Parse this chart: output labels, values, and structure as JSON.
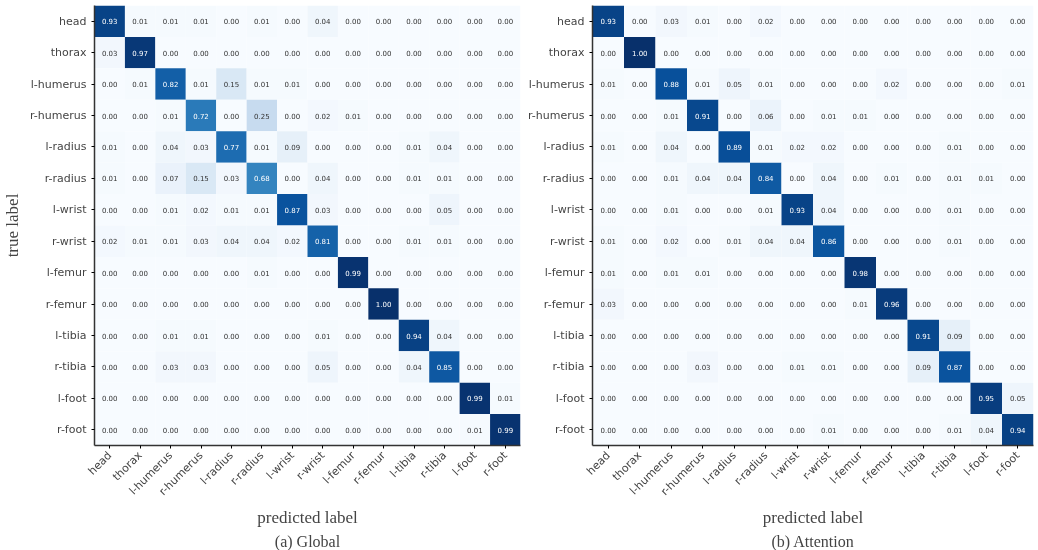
{
  "chart_data": [
    {
      "type": "heatmap",
      "xlabel": "predicted label",
      "ylabel": "true label",
      "annotations": [
        "(a) Global"
      ],
      "grid": false,
      "categories": [
        "head",
        "thorax",
        "l-humerus",
        "r-humerus",
        "l-radius",
        "r-radius",
        "l-wrist",
        "r-wrist",
        "l-femur",
        "r-femur",
        "l-tibia",
        "r-tibia",
        "l-foot",
        "r-foot"
      ],
      "y_categories": [
        "head",
        "thorax",
        "l-humerus",
        "r-humerus",
        "l-radius",
        "r-radius",
        "l-wrist",
        "r-wrist",
        "l-femur",
        "r-femur",
        "l-tibia",
        "r-tibia",
        "l-foot",
        "r-foot"
      ],
      "cells": [
        [
          0.93,
          0.01,
          0.01,
          0.01,
          0.0,
          0.01,
          0.0,
          0.04,
          0.0,
          0.0,
          0.0,
          0.0,
          0.0,
          0.0
        ],
        [
          0.03,
          0.97,
          0.0,
          0.0,
          0.0,
          0.0,
          0.0,
          0.0,
          0.0,
          0.0,
          0.0,
          0.0,
          0.0,
          0.0
        ],
        [
          0.0,
          0.01,
          0.82,
          0.01,
          0.15,
          0.01,
          0.01,
          0.0,
          0.0,
          0.0,
          0.0,
          0.0,
          0.0,
          0.0
        ],
        [
          0.0,
          0.0,
          0.01,
          0.72,
          0.0,
          0.25,
          0.0,
          0.02,
          0.01,
          0.0,
          0.0,
          0.0,
          0.0,
          0.0
        ],
        [
          0.01,
          0.0,
          0.04,
          0.03,
          0.77,
          0.01,
          0.09,
          0.0,
          0.0,
          0.0,
          0.01,
          0.04,
          0.0,
          0.0
        ],
        [
          0.01,
          0.0,
          0.07,
          0.15,
          0.03,
          0.68,
          0.0,
          0.04,
          0.0,
          0.0,
          0.01,
          0.01,
          0.0,
          0.0
        ],
        [
          0.0,
          0.0,
          0.01,
          0.02,
          0.01,
          0.01,
          0.87,
          0.03,
          0.0,
          0.0,
          0.0,
          0.05,
          0.0,
          0.0
        ],
        [
          0.02,
          0.01,
          0.01,
          0.03,
          0.04,
          0.04,
          0.02,
          0.81,
          0.0,
          0.0,
          0.01,
          0.01,
          0.0,
          0.0
        ],
        [
          0.0,
          0.0,
          0.0,
          0.0,
          0.0,
          0.01,
          0.0,
          0.0,
          0.99,
          0.0,
          0.0,
          0.0,
          0.0,
          0.0
        ],
        [
          0.0,
          0.0,
          0.0,
          0.0,
          0.0,
          0.0,
          0.0,
          0.0,
          0.0,
          1.0,
          0.0,
          0.0,
          0.0,
          0.0
        ],
        [
          0.0,
          0.0,
          0.01,
          0.01,
          0.0,
          0.0,
          0.0,
          0.01,
          0.0,
          0.0,
          0.94,
          0.04,
          0.0,
          0.0
        ],
        [
          0.0,
          0.0,
          0.03,
          0.03,
          0.0,
          0.0,
          0.0,
          0.05,
          0.0,
          0.0,
          0.04,
          0.85,
          0.0,
          0.0
        ],
        [
          0.0,
          0.0,
          0.0,
          0.0,
          0.0,
          0.0,
          0.0,
          0.0,
          0.0,
          0.0,
          0.0,
          0.0,
          0.99,
          0.01
        ],
        [
          0.0,
          0.0,
          0.0,
          0.0,
          0.0,
          0.0,
          0.0,
          0.0,
          0.0,
          0.0,
          0.0,
          0.0,
          0.01,
          0.99
        ]
      ],
      "cell_labels": [
        [
          "0.93",
          "0.01",
          "0.01",
          "0.01",
          "0.00",
          "0.01",
          "0.00",
          "0.04",
          "0.00",
          "0.00",
          "0.00",
          "0.00",
          "0.00",
          "0.00"
        ],
        [
          "0.03",
          "0.97",
          "0.00",
          "0.00",
          "0.00",
          "0.00",
          "0.00",
          "0.00",
          "0.00",
          "0.00",
          "0.00",
          "0.00",
          "0.00",
          "0.00"
        ],
        [
          "0.00",
          "0.01",
          "0.82",
          "0.01",
          "0.15",
          "0.01",
          "0.01",
          "0.00",
          "0.00",
          "0.00",
          "0.00",
          "0.00",
          "0.00",
          "0.00"
        ],
        [
          "0.00",
          "0.00",
          "0.01",
          "0.72",
          "0.00",
          "0.25",
          "0.00",
          "0.02",
          "0.01",
          "0.00",
          "0.00",
          "0.00",
          "0.00",
          "0.00"
        ],
        [
          "0.01",
          "0.00",
          "0.04",
          "0.03",
          "0.77",
          "0.01",
          "0.09",
          "0.00",
          "0.00",
          "0.00",
          "0.01",
          "0.04",
          "0.00",
          "0.00"
        ],
        [
          "0.01",
          "0.00",
          "0.07",
          "0.15",
          "0.03",
          "0.68",
          "0.00",
          "0.04",
          "0.00",
          "0.00",
          "0.01",
          "0.01",
          "0.00",
          "0.00"
        ],
        [
          "0.00",
          "0.00",
          "0.01",
          "0.02",
          "0.01",
          "0.01",
          "0.87",
          "0.03",
          "0.00",
          "0.00",
          "0.00",
          "0.05",
          "0.00",
          "0.00"
        ],
        [
          "0.02",
          "0.01",
          "0.01",
          "0.03",
          "0.04",
          "0.04",
          "0.02",
          "0.81",
          "0.00",
          "0.00",
          "0.01",
          "0.01",
          "0.00",
          "0.00"
        ],
        [
          "0.00",
          "0.00",
          "0.00",
          "0.00",
          "0.00",
          "0.01",
          "0.00",
          "0.00",
          "0.99",
          "0.00",
          "0.00",
          "0.00",
          "0.00",
          "0.00"
        ],
        [
          "0.00",
          "0.00",
          "0.00",
          "0.00",
          "0.00",
          "0.00",
          "0.00",
          "0.00",
          "0.00",
          "1.00",
          "0.00",
          "0.00",
          "0.00",
          "0.00"
        ],
        [
          "0.00",
          "0.00",
          "0.01",
          "0.01",
          "0.00",
          "0.00",
          "0.00",
          "0.01",
          "0.00",
          "0.00",
          "0.94",
          "0.04",
          "0.00",
          "0.00"
        ],
        [
          "0.00",
          "0.00",
          "0.03",
          "0.03",
          "0.00",
          "0.00",
          "0.00",
          "0.05",
          "0.00",
          "0.00",
          "0.04",
          "0.85",
          "0.00",
          "0.00"
        ],
        [
          "0.00",
          "0.00",
          "0.00",
          "0.00",
          "0.00",
          "0.00",
          "0.00",
          "0.00",
          "0.00",
          "0.00",
          "0.00",
          "0.00",
          "0.99",
          "0.01"
        ],
        [
          "0.00",
          "0.00",
          "0.00",
          "0.00",
          "0.00",
          "0.00",
          "0.00",
          "0.00",
          "0.00",
          "0.00",
          "0.00",
          "0.00",
          "0.01",
          "0.99"
        ]
      ]
    },
    {
      "type": "heatmap",
      "xlabel": "predicted label",
      "annotations": [
        "(b) Attention"
      ],
      "grid": false,
      "categories": [
        "head",
        "thorax",
        "l-humerus",
        "r-humerus",
        "l-radius",
        "r-radius",
        "l-wrist",
        "r-wrist",
        "l-femur",
        "r-femur",
        "l-tibia",
        "r-tibia",
        "l-foot",
        "r-foot"
      ],
      "y_categories": [
        "head",
        "thorax",
        "l-humerus",
        "r-humerus",
        "l-radius",
        "r-radius",
        "l-wrist",
        "r-wrist",
        "l-femur",
        "r-femur",
        "l-tibia",
        "r-tibia",
        "l-foot",
        "r-foot"
      ],
      "cells": [
        [
          0.93,
          0.0,
          0.03,
          0.01,
          0.0,
          0.02,
          0.0,
          0.0,
          0.0,
          0.0,
          0.0,
          0.0,
          0.0,
          0.0
        ],
        [
          0.0,
          1.0,
          0.0,
          0.0,
          0.0,
          0.0,
          0.0,
          0.0,
          0.0,
          0.0,
          0.0,
          0.0,
          0.0,
          0.0
        ],
        [
          0.01,
          0.0,
          0.88,
          0.01,
          0.05,
          0.01,
          0.0,
          0.0,
          0.0,
          0.02,
          0.0,
          0.0,
          0.0,
          0.01
        ],
        [
          0.0,
          0.0,
          0.01,
          0.91,
          0.0,
          0.06,
          0.0,
          0.01,
          0.01,
          0.0,
          0.0,
          0.0,
          0.0,
          0.0
        ],
        [
          0.01,
          0.0,
          0.04,
          0.0,
          0.89,
          0.01,
          0.02,
          0.02,
          0.0,
          0.0,
          0.0,
          0.01,
          0.0,
          0.0
        ],
        [
          0.0,
          0.0,
          0.01,
          0.04,
          0.04,
          0.84,
          0.0,
          0.04,
          0.0,
          0.01,
          0.0,
          0.01,
          0.01,
          0.0
        ],
        [
          0.0,
          0.0,
          0.01,
          0.0,
          0.0,
          0.01,
          0.93,
          0.04,
          0.0,
          0.0,
          0.0,
          0.01,
          0.0,
          0.0
        ],
        [
          0.01,
          0.0,
          0.02,
          0.0,
          0.01,
          0.04,
          0.04,
          0.86,
          0.0,
          0.0,
          0.0,
          0.01,
          0.0,
          0.0
        ],
        [
          0.01,
          0.0,
          0.01,
          0.01,
          0.0,
          0.0,
          0.0,
          0.0,
          0.98,
          0.0,
          0.0,
          0.0,
          0.0,
          0.0
        ],
        [
          0.03,
          0.0,
          0.0,
          0.0,
          0.0,
          0.0,
          0.0,
          0.0,
          0.01,
          0.96,
          0.0,
          0.0,
          0.0,
          0.0
        ],
        [
          0.0,
          0.0,
          0.0,
          0.0,
          0.0,
          0.0,
          0.0,
          0.0,
          0.0,
          0.0,
          0.91,
          0.09,
          0.0,
          0.0
        ],
        [
          0.0,
          0.0,
          0.0,
          0.03,
          0.0,
          0.0,
          0.01,
          0.01,
          0.0,
          0.0,
          0.09,
          0.87,
          0.0,
          0.0
        ],
        [
          0.0,
          0.0,
          0.0,
          0.0,
          0.0,
          0.0,
          0.0,
          0.0,
          0.0,
          0.0,
          0.0,
          0.0,
          0.95,
          0.05
        ],
        [
          0.0,
          0.0,
          0.0,
          0.0,
          0.0,
          0.0,
          0.0,
          0.01,
          0.0,
          0.0,
          0.0,
          0.01,
          0.04,
          0.94
        ]
      ],
      "cell_labels": [
        [
          "0.93",
          "0.00",
          "0.03",
          "0.01",
          "0.00",
          "0.02",
          "0.00",
          "0.00",
          "0.00",
          "0.00",
          "0.00",
          "0.00",
          "0.00",
          "0.00"
        ],
        [
          "0.00",
          "1.00",
          "0.00",
          "0.00",
          "0.00",
          "0.00",
          "0.00",
          "0.00",
          "0.00",
          "0.00",
          "0.00",
          "0.00",
          "0.00",
          "0.00"
        ],
        [
          "0.01",
          "0.00",
          "0.88",
          "0.01",
          "0.05",
          "0.01",
          "0.00",
          "0.00",
          "0.00",
          "0.02",
          "0.00",
          "0.00",
          "0.00",
          "0.01"
        ],
        [
          "0.00",
          "0.00",
          "0.01",
          "0.91",
          "0.00",
          "0.06",
          "0.00",
          "0.01",
          "0.01",
          "0.00",
          "0.00",
          "0.00",
          "0.00",
          "0.00"
        ],
        [
          "0.01",
          "0.00",
          "0.04",
          "0.00",
          "0.89",
          "0.01",
          "0.02",
          "0.02",
          "0.00",
          "0.00",
          "0.00",
          "0.01",
          "0.00",
          "0.00"
        ],
        [
          "0.00",
          "0.00",
          "0.01",
          "0.04",
          "0.04",
          "0.84",
          "0.00",
          "0.04",
          "0.00",
          "0.01",
          "0.00",
          "0.01",
          "0.01",
          "0.00"
        ],
        [
          "0.00",
          "0.00",
          "0.01",
          "0.00",
          "0.00",
          "0.01",
          "0.93",
          "0.04",
          "0.00",
          "0.00",
          "0.00",
          "0.01",
          "0.00",
          "0.00"
        ],
        [
          "0.01",
          "0.00",
          "0.02",
          "0.00",
          "0.01",
          "0.04",
          "0.04",
          "0.86",
          "0.00",
          "0.00",
          "0.00",
          "0.01",
          "0.00",
          "0.00"
        ],
        [
          "0.01",
          "0.00",
          "0.01",
          "0.01",
          "0.00",
          "0.00",
          "0.00",
          "0.00",
          "0.98",
          "0.00",
          "0.00",
          "0.00",
          "0.00",
          "0.00"
        ],
        [
          "0.03",
          "0.00",
          "0.00",
          "0.00",
          "0.00",
          "0.00",
          "0.00",
          "0.00",
          "0.01",
          "0.96",
          "0.00",
          "0.00",
          "0.00",
          "0.00"
        ],
        [
          "0.00",
          "0.00",
          "0.00",
          "0.00",
          "0.00",
          "0.00",
          "0.00",
          "0.00",
          "0.00",
          "0.00",
          "0.91",
          "0.09",
          "0.00",
          "0.00"
        ],
        [
          "0.00",
          "0.00",
          "0.00",
          "0.03",
          "0.00",
          "0.00",
          "0.01",
          "0.01",
          "0.00",
          "0.00",
          "0.09",
          "0.87",
          "0.00",
          "0.00"
        ],
        [
          "0.00",
          "0.00",
          "0.00",
          "0.00",
          "0.00",
          "0.00",
          "0.00",
          "0.00",
          "0.00",
          "0.00",
          "0.00",
          "0.00",
          "0.95",
          "0.05"
        ],
        [
          "0.00",
          "0.00",
          "0.00",
          "0.00",
          "0.00",
          "0.00",
          "0.00",
          "0.01",
          "0.00",
          "0.00",
          "0.00",
          "0.01",
          "0.04",
          "0.94"
        ]
      ]
    }
  ]
}
